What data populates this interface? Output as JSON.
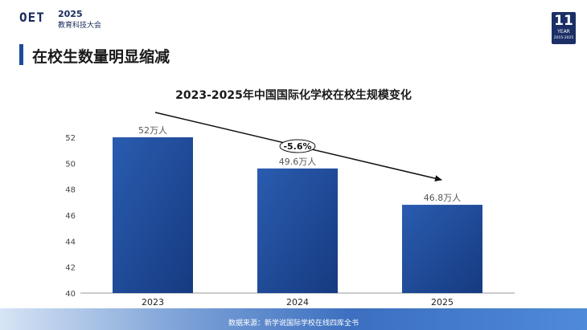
{
  "header": {
    "logo_main": "OET",
    "logo_year": "2025",
    "logo_sub": "教育科技大会",
    "badge_number": "11",
    "badge_label": "YEAR",
    "badge_range": "2015-2025",
    "page_title": "在校生数量明显缩减"
  },
  "chart_data": {
    "type": "bar",
    "title": "2023-2025年中国国际化学校在校生规模变化",
    "categories": [
      "2023",
      "2024",
      "2025"
    ],
    "values": [
      52,
      49.6,
      46.8
    ],
    "data_labels": [
      "52万人",
      "49.6万人",
      "46.8万人"
    ],
    "ylim": [
      40,
      52
    ],
    "yticks": [
      40,
      42,
      44,
      46,
      48,
      50,
      52
    ],
    "trend_annotation": "-5.6%",
    "bar_color": "#1e4b9a",
    "grid": false,
    "legend": "none"
  },
  "footer": {
    "source": "数据来源：新学说国际学校在线四库全书"
  }
}
